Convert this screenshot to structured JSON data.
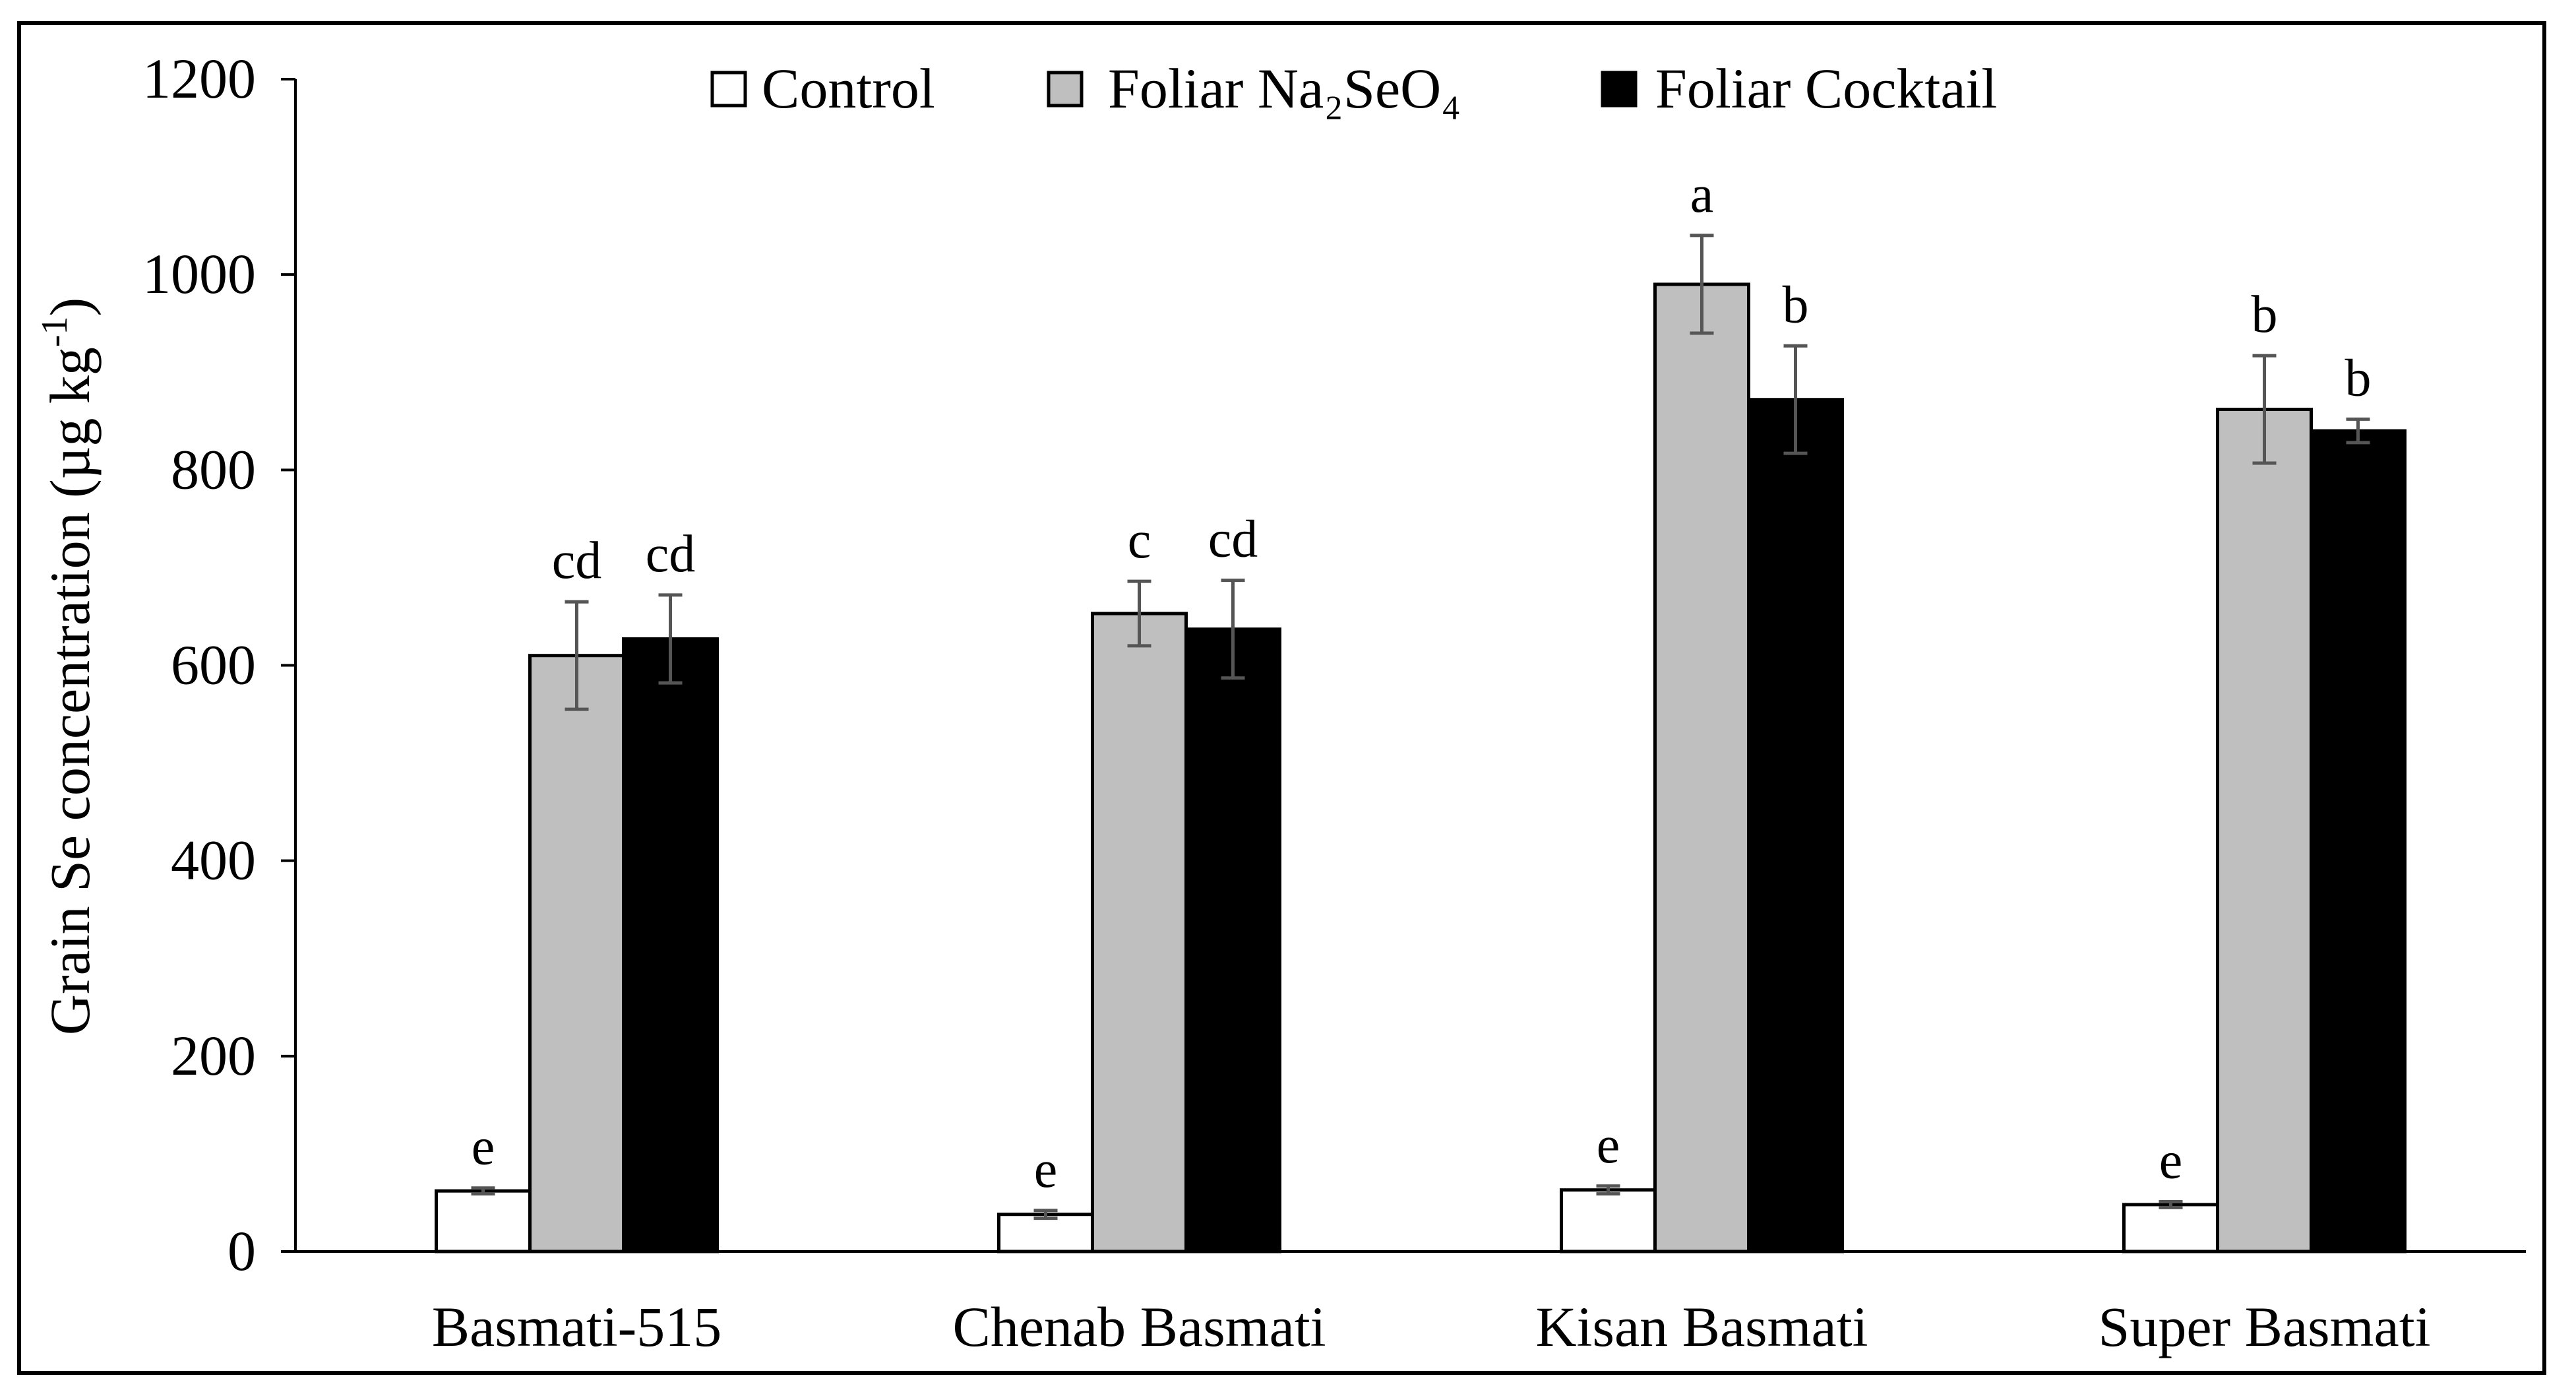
{
  "chart_data": {
    "type": "bar",
    "title": "",
    "xlabel": "",
    "ylabel": "Grain Se concentration (µg kg",
    "ylabel_sup": "-1",
    "ylabel_close": ")",
    "ylim": [
      0,
      1200
    ],
    "yticks": [
      0,
      200,
      400,
      600,
      800,
      1000,
      1200
    ],
    "categories": [
      "Basmati-515",
      "Chenab Basmati",
      "Kisan Basmati",
      "Super Basmati"
    ],
    "series": [
      {
        "name": "Control",
        "color": "#ffffff",
        "values": [
          62,
          38,
          63,
          48
        ],
        "errors": [
          3,
          4,
          4,
          3
        ],
        "letters": [
          "e",
          "e",
          "e",
          "e"
        ]
      },
      {
        "name": "Foliar Na₂SeO₄",
        "color": "#bfbfbf",
        "values": [
          610,
          653,
          990,
          862
        ],
        "errors": [
          55,
          33,
          50,
          55
        ],
        "letters": [
          "cd",
          "c",
          "a",
          "b"
        ]
      },
      {
        "name": "Foliar Cocktail",
        "color": "#000000",
        "values": [
          627,
          637,
          872,
          840
        ],
        "errors": [
          45,
          50,
          55,
          12
        ],
        "letters": [
          "cd",
          "cd",
          "b",
          "b"
        ]
      }
    ],
    "legend_position": "top-center"
  }
}
